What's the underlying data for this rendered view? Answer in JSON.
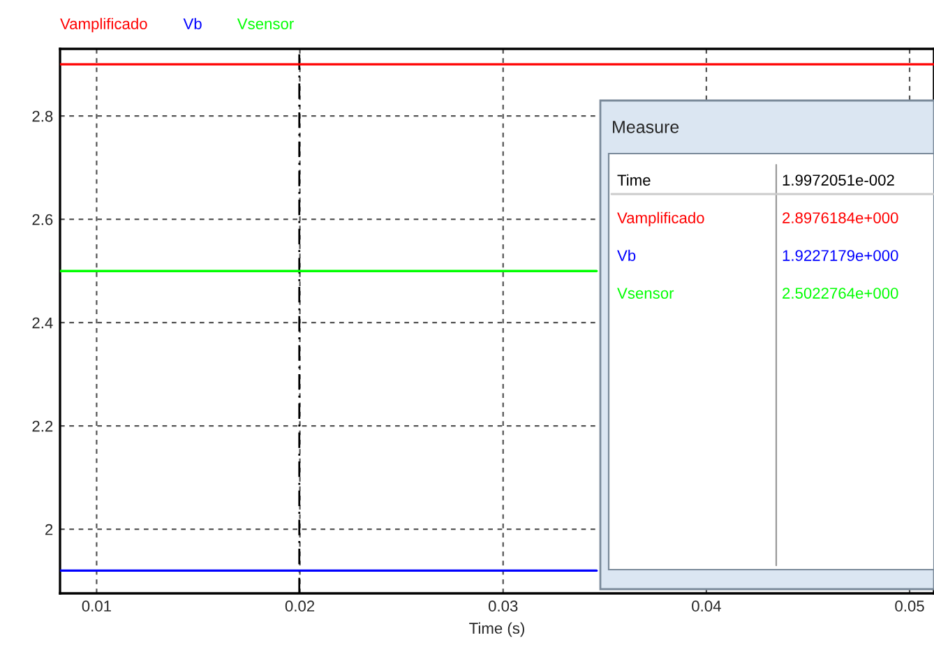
{
  "chart_data": {
    "type": "line",
    "xlabel": "Time (s)",
    "x": [
      0.0082,
      0.0346,
      0.0512
    ],
    "series": [
      {
        "name": "Vamplificado",
        "color": "#ff0000",
        "values": [
          2.9,
          2.9,
          2.9
        ]
      },
      {
        "name": "Vb",
        "color": "#0000ff",
        "values": [
          1.92,
          1.92,
          null
        ]
      },
      {
        "name": "Vsensor",
        "color": "#00ff00",
        "values": [
          2.5,
          2.5,
          null
        ]
      }
    ],
    "xlim": [
      0.0082,
      0.0512
    ],
    "xticks": [
      0.01,
      0.02,
      0.03,
      0.04,
      0.05
    ],
    "ylim": [
      1.876,
      2.93
    ],
    "yticks": [
      {
        "value": 2.0,
        "label": "2"
      },
      2.2,
      2.4,
      2.6,
      2.8
    ],
    "grid": true,
    "legend": "top left",
    "line_style": "solid",
    "ref_lines": [
      {
        "axis": "x",
        "value": 0.019972051,
        "color": "#000000",
        "line_style": "dashed"
      }
    ],
    "annotations": [
      "Measure",
      "Time",
      "1.9972051e-002",
      "Vamplificado",
      "2.8976184e+000",
      "Vb",
      "1.9227179e+000",
      "Vsensor",
      "2.5022764e+000"
    ]
  }
}
